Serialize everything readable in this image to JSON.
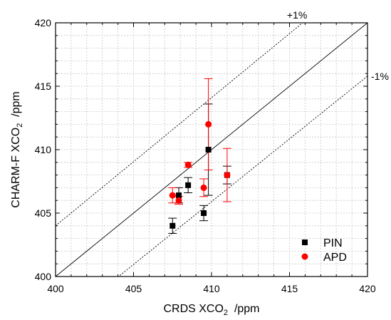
{
  "chart_data": {
    "type": "scatter",
    "xlabel": {
      "pre": "CRDS XCO",
      "sub": "2",
      "post": "  /ppm"
    },
    "ylabel": {
      "pre": "CHARM-F XCO",
      "sub": "2",
      "post": "  /ppm"
    },
    "xlim": [
      400,
      420
    ],
    "ylim": [
      400,
      420
    ],
    "xticks": [
      "400",
      "405",
      "410",
      "415",
      "420"
    ],
    "yticks": [
      "400",
      "405",
      "410",
      "415",
      "420"
    ],
    "grid": true,
    "legend_position": "bottom-right",
    "reference_lines": [
      {
        "label": "",
        "slope": 1.0,
        "style": "solid"
      },
      {
        "label": "+1%",
        "slope": 1.01,
        "style": "dotted"
      },
      {
        "label": "-1%",
        "slope": 0.99,
        "style": "dotted"
      }
    ],
    "series": [
      {
        "name": "PIN",
        "marker": "square",
        "color": "#000000",
        "points": [
          {
            "x": 407.5,
            "y": 404.0,
            "err": 0.6
          },
          {
            "x": 407.9,
            "y": 406.4,
            "err": 0.6
          },
          {
            "x": 408.5,
            "y": 407.2,
            "err": 0.6
          },
          {
            "x": 409.5,
            "y": 405.0,
            "err": 0.6
          },
          {
            "x": 409.8,
            "y": 410.0,
            "err": 3.6
          },
          {
            "x": 411.0,
            "y": 408.0,
            "err": 0.7
          }
        ]
      },
      {
        "name": "APD",
        "marker": "circle",
        "color": "#ff0000",
        "points": [
          {
            "x": 407.5,
            "y": 406.4,
            "err": 0.6
          },
          {
            "x": 407.9,
            "y": 406.0,
            "err": 0.3
          },
          {
            "x": 408.5,
            "y": 408.8,
            "err": 0.2
          },
          {
            "x": 409.5,
            "y": 407.0,
            "err": 0.7
          },
          {
            "x": 409.8,
            "y": 412.0,
            "err": 3.6
          },
          {
            "x": 411.0,
            "y": 408.0,
            "err": 2.1
          }
        ]
      }
    ]
  }
}
